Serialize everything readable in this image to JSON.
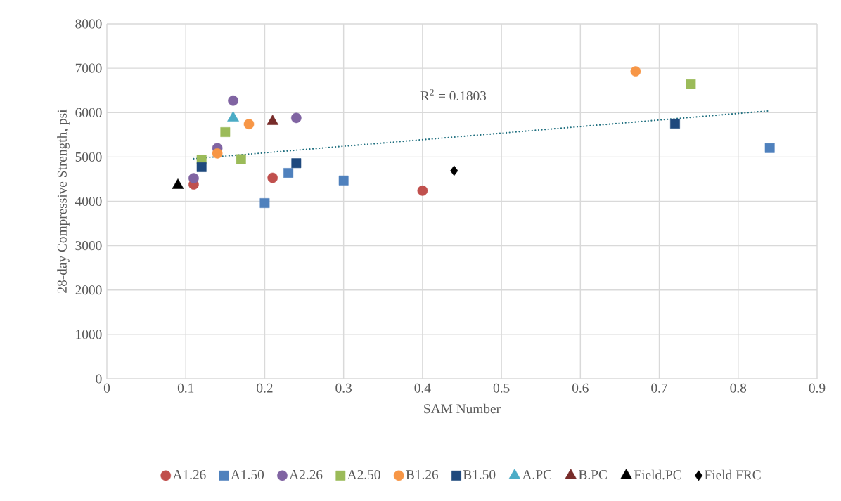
{
  "chart_data": {
    "type": "scatter",
    "xlabel": "SAM Number",
    "ylabel": "28-day Compressive Strength, psi",
    "xlim": [
      0,
      0.9
    ],
    "xticks": [
      0,
      0.1,
      0.2,
      0.3,
      0.4,
      0.5,
      0.6,
      0.7,
      0.8,
      0.9
    ],
    "ylim": [
      0,
      8000
    ],
    "yticks": [
      0,
      1000,
      2000,
      3000,
      4000,
      5000,
      6000,
      7000,
      8000
    ],
    "grid": true,
    "legend": "bottom",
    "annotations": [
      "R$^{2}$ = 0.1803"
    ],
    "series": [
      {
        "name": "A1.26",
        "color": "#c0504d",
        "marker": "circle",
        "x": [
          0.11,
          0.21,
          0.4
        ],
        "values": [
          4380,
          4530,
          4240
        ]
      },
      {
        "name": "A1.50",
        "color": "#4f81bd",
        "marker": "square",
        "x": [
          0.2,
          0.23,
          0.3,
          0.84
        ],
        "values": [
          3960,
          4640,
          4470,
          5200
        ]
      },
      {
        "name": "A2.26",
        "color": "#8064a2",
        "marker": "circle",
        "x": [
          0.11,
          0.14,
          0.16,
          0.24
        ],
        "values": [
          4520,
          5200,
          6270,
          5880
        ]
      },
      {
        "name": "A2.50",
        "color": "#9bbb59",
        "marker": "square",
        "x": [
          0.12,
          0.15,
          0.17,
          0.74
        ],
        "values": [
          4940,
          5560,
          4950,
          6640
        ]
      },
      {
        "name": "B1.26",
        "color": "#f79646",
        "marker": "circle",
        "x": [
          0.14,
          0.18,
          0.67
        ],
        "values": [
          5080,
          5740,
          6930
        ]
      },
      {
        "name": "B1.50",
        "color": "#1f497d",
        "marker": "square",
        "x": [
          0.12,
          0.24,
          0.72
        ],
        "values": [
          4770,
          4860,
          5750
        ]
      },
      {
        "name": "A.PC",
        "color": "#4bacc6",
        "marker": "triangle",
        "x": [
          0.16
        ],
        "values": [
          5880
        ]
      },
      {
        "name": "B.PC",
        "color": "#772c2a",
        "marker": "triangle",
        "x": [
          0.21
        ],
        "values": [
          5800
        ]
      },
      {
        "name": "Field.PC",
        "color": "#000000",
        "marker": "triangle",
        "x": [
          0.09
        ],
        "values": [
          4360
        ]
      },
      {
        "name": "Field FRC",
        "color": "#000000",
        "marker": "diamond",
        "x": [
          0.44
        ],
        "values": [
          4690
        ]
      },
      {
        "type": "line",
        "color": "#1f6f7f",
        "line_style": "dotted",
        "marker": "none",
        "x": [
          0.11,
          0.84
        ],
        "values": [
          4960,
          6040
        ]
      }
    ]
  }
}
